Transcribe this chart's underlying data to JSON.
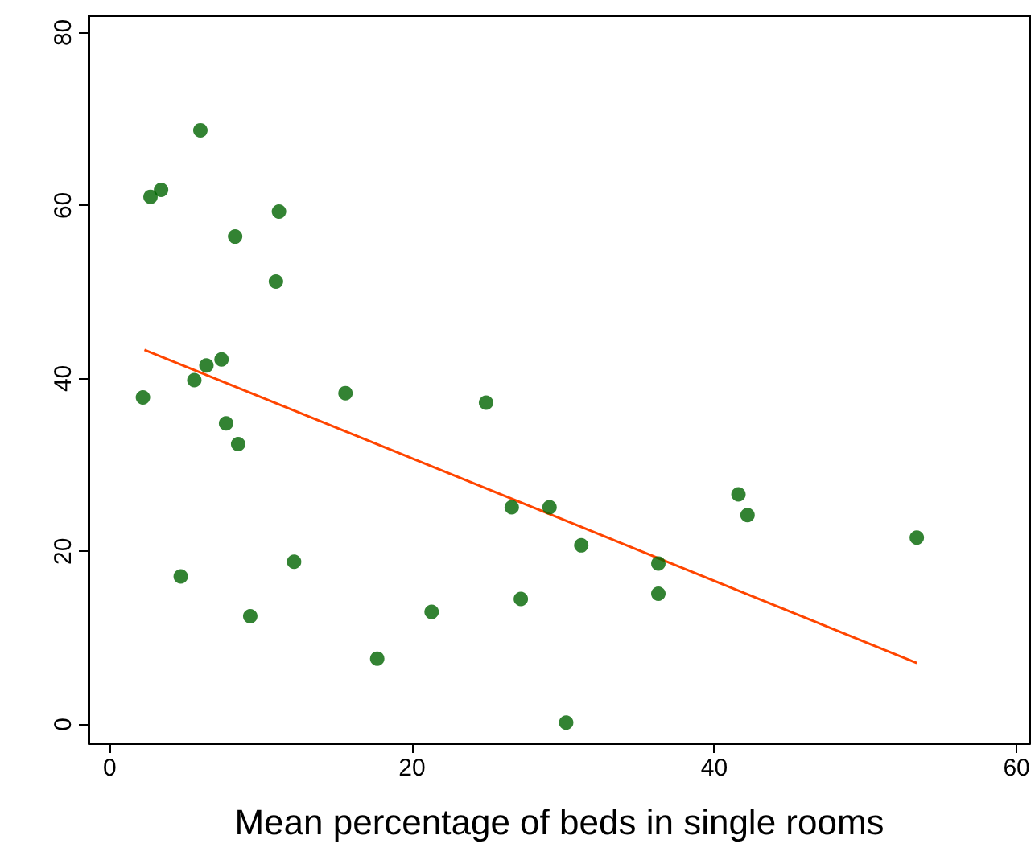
{
  "chart_data": {
    "type": "scatter",
    "xlabel": "Mean percentage of beds in single rooms",
    "xlim": [
      -1.4,
      60.9
    ],
    "ylim": [
      -2.2,
      81.9
    ],
    "xticks": [
      0,
      20,
      40,
      60
    ],
    "yticks": [
      0,
      20,
      40,
      60,
      80
    ],
    "grid": false,
    "series": [
      {
        "marker": "circle",
        "color": "#006400",
        "x": [
          2.2,
          2.7,
          3.4,
          4.7,
          5.6,
          6.0,
          6.4,
          7.4,
          7.7,
          8.3,
          8.5,
          9.3,
          11.0,
          11.2,
          12.2,
          15.6,
          17.7,
          21.3,
          24.9,
          26.6,
          27.2,
          29.1,
          30.2,
          31.2,
          36.3,
          36.3,
          41.6,
          42.2,
          53.4
        ],
        "values": [
          37.8,
          61,
          61.8,
          17.1,
          39.8,
          68.7,
          41.5,
          42.2,
          34.8,
          56.4,
          32.4,
          12.5,
          51.2,
          59.3,
          18.8,
          38.3,
          7.6,
          13.0,
          37.2,
          25.1,
          14.5,
          25.1,
          0.2,
          20.7,
          18.6,
          15.1,
          26.6,
          24.2,
          21.6
        ]
      },
      {
        "type": "line",
        "marker": "none",
        "color": "#ff4500",
        "x": [
          2.3,
          53.4
        ],
        "values": [
          43.3,
          7.1
        ]
      }
    ]
  }
}
